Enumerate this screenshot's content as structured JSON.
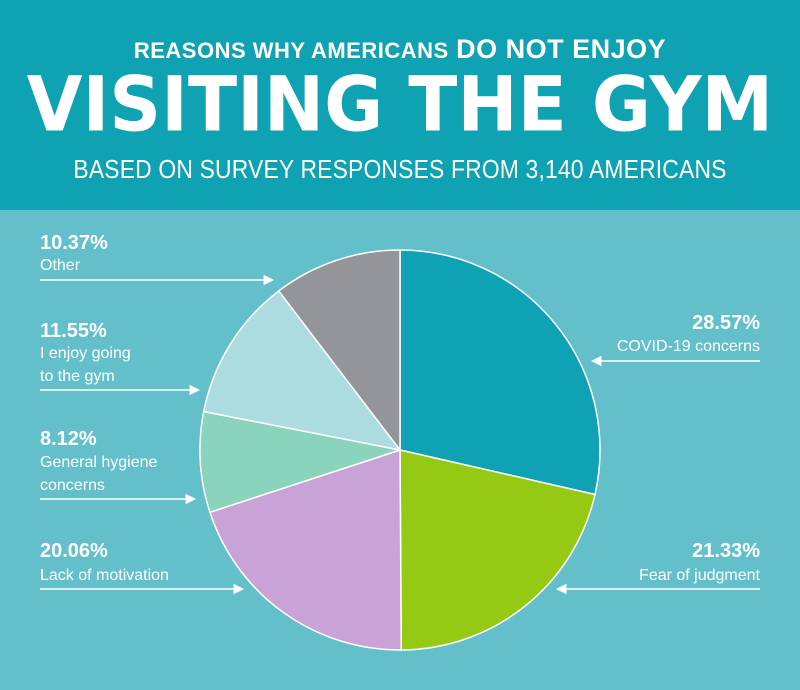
{
  "header": {
    "pre_title_a": "REASONS WHY AMERICANS",
    "pre_title_b": "DO NOT ENJOY",
    "title": "VISITING THE GYM",
    "subtitle": "BASED ON SURVEY RESPONSES FROM 3,140 AMERICANS"
  },
  "colors": {
    "header_bg": "#0fa2b3",
    "body_bg": "#63c0cb",
    "text": "#ffffff"
  },
  "chart_data": {
    "type": "pie",
    "title": "VISITING THE GYM",
    "start": "12 o'clock, clockwise",
    "slices": [
      {
        "label": "COVID-19 concerns",
        "pct_label": "28.57%",
        "value": 28.57,
        "color": "#0ea2b4"
      },
      {
        "label": "Fear of judgment",
        "pct_label": "21.33%",
        "value": 21.33,
        "color": "#96c914"
      },
      {
        "label": "Lack of motivation",
        "pct_label": "20.06%",
        "value": 20.06,
        "color": "#c9a2d8"
      },
      {
        "label": "General hygiene concerns",
        "pct_label": "8.12%",
        "value": 8.12,
        "color": "#8ad3bc"
      },
      {
        "label": "I enjoy going to the gym",
        "pct_label": "11.55%",
        "value": 11.55,
        "color": "#acdbe0"
      },
      {
        "label": "Other",
        "pct_label": "10.37%",
        "value": 10.37,
        "color": "#939599"
      }
    ]
  },
  "annotations": {
    "other_pct": "10.37%",
    "other_l1": "Other",
    "enjoy_pct": "11.55%",
    "enjoy_l1": "I enjoy going",
    "enjoy_l2": "to the gym",
    "hygiene_pct": "8.12%",
    "hygiene_l1": "General hygiene",
    "hygiene_l2": "concerns",
    "motivation_pct": "20.06%",
    "motivation_l1": "Lack of motivation",
    "covid_pct": "28.57%",
    "covid_l1": "COVID-19 concerns",
    "judgment_pct": "21.33%",
    "judgment_l1": "Fear of judgment"
  }
}
